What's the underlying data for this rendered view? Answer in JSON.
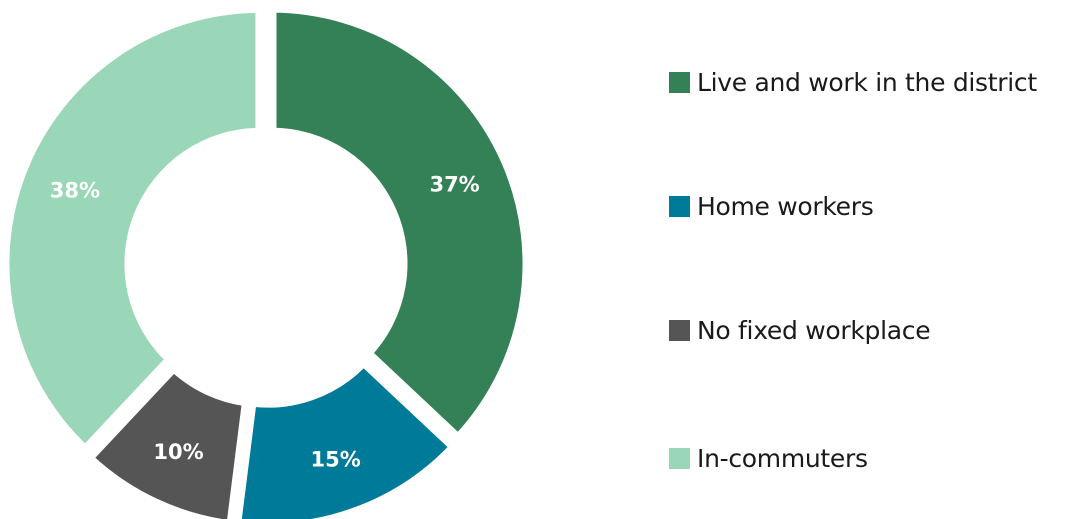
{
  "chart_data": {
    "type": "pie",
    "variant": "donut",
    "title": "",
    "slices": [
      {
        "label": "Live and work in the district",
        "value": 37,
        "display": "37%",
        "color": "#348157"
      },
      {
        "label": "Home workers",
        "value": 15,
        "display": "15%",
        "color": "#007a99"
      },
      {
        "label": "No fixed workplace",
        "value": 10,
        "display": "10%",
        "color": "#555555"
      },
      {
        "label": "In-commuters",
        "value": 38,
        "display": "38%",
        "color": "#9ad6b8"
      }
    ],
    "legend_position": "right"
  }
}
